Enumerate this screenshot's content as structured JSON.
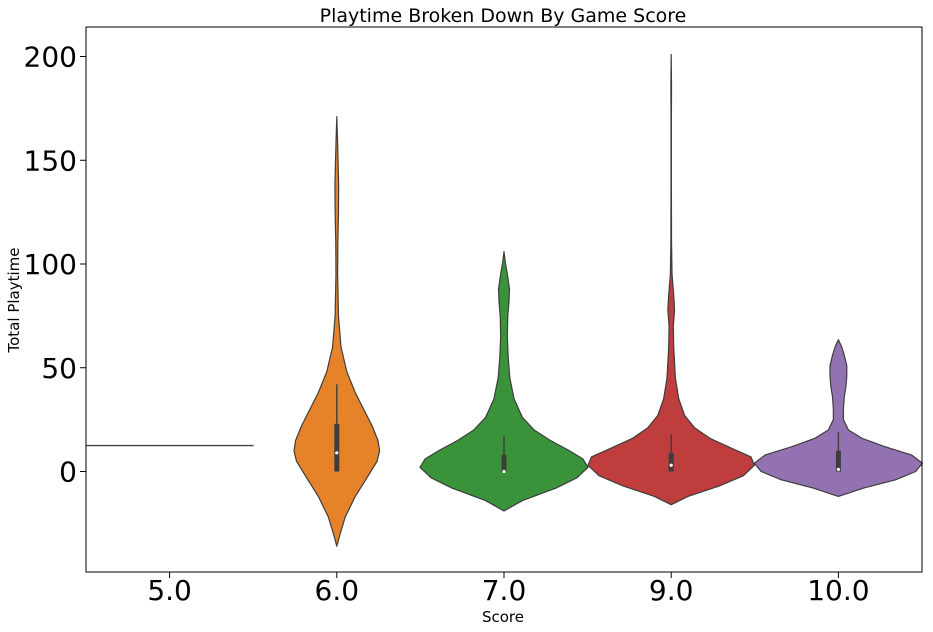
{
  "chart_data": {
    "type": "violin",
    "title": "Playtime Broken Down By Game Score",
    "xlabel": "Score",
    "ylabel": "Total Playtime",
    "categories": [
      "5.0",
      "6.0",
      "7.0",
      "9.0",
      "10.0"
    ],
    "yticks": [
      0,
      50,
      100,
      150,
      200
    ],
    "ylim": [
      -48,
      213
    ],
    "grid": false,
    "violins": [
      {
        "category": "5.0",
        "color": "#1f77b4",
        "degenerate": true,
        "value": 12.5,
        "profile": []
      },
      {
        "category": "6.0",
        "color": "#e6822a",
        "degenerate": false,
        "profile": [
          [
            -36,
            0.0
          ],
          [
            -30,
            0.04
          ],
          [
            -22,
            0.1
          ],
          [
            -12,
            0.22
          ],
          [
            -3,
            0.36
          ],
          [
            5,
            0.48
          ],
          [
            10,
            0.51
          ],
          [
            15,
            0.49
          ],
          [
            22,
            0.42
          ],
          [
            30,
            0.32
          ],
          [
            38,
            0.22
          ],
          [
            48,
            0.12
          ],
          [
            60,
            0.05
          ],
          [
            75,
            0.02
          ],
          [
            95,
            0.01
          ],
          [
            110,
            0.012
          ],
          [
            125,
            0.02
          ],
          [
            138,
            0.022
          ],
          [
            150,
            0.015
          ],
          [
            162,
            0.007
          ],
          [
            171,
            0.0
          ]
        ],
        "box": {
          "q1": 0,
          "median": 9,
          "q3": 23,
          "whisker_low": 0,
          "whisker_high": 42
        }
      },
      {
        "category": "7.0",
        "color": "#3a923a",
        "degenerate": false,
        "profile": [
          [
            -19,
            0.0
          ],
          [
            -14,
            0.22
          ],
          [
            -8,
            0.62
          ],
          [
            -3,
            0.87
          ],
          [
            2,
            1.0
          ],
          [
            6,
            0.94
          ],
          [
            10,
            0.78
          ],
          [
            15,
            0.55
          ],
          [
            20,
            0.36
          ],
          [
            26,
            0.22
          ],
          [
            35,
            0.12
          ],
          [
            45,
            0.07
          ],
          [
            55,
            0.05
          ],
          [
            65,
            0.04
          ],
          [
            75,
            0.045
          ],
          [
            82,
            0.06
          ],
          [
            88,
            0.065
          ],
          [
            95,
            0.04
          ],
          [
            101,
            0.015
          ],
          [
            106,
            0.0
          ]
        ],
        "box": {
          "q1": 0,
          "median": 0,
          "q3": 8,
          "whisker_low": 0,
          "whisker_high": 17
        }
      },
      {
        "category": "9.0",
        "color": "#c03d3e",
        "degenerate": false,
        "profile": [
          [
            -16,
            0.0
          ],
          [
            -12,
            0.2
          ],
          [
            -7,
            0.57
          ],
          [
            -2,
            0.86
          ],
          [
            3,
            0.99
          ],
          [
            7,
            0.95
          ],
          [
            11,
            0.73
          ],
          [
            16,
            0.46
          ],
          [
            21,
            0.28
          ],
          [
            27,
            0.16
          ],
          [
            35,
            0.09
          ],
          [
            45,
            0.05
          ],
          [
            60,
            0.03
          ],
          [
            70,
            0.025
          ],
          [
            78,
            0.04
          ],
          [
            85,
            0.03
          ],
          [
            95,
            0.01
          ],
          [
            110,
            0.004
          ],
          [
            140,
            0.002
          ],
          [
            170,
            0.002
          ],
          [
            185,
            0.004
          ],
          [
            193,
            0.002
          ],
          [
            201,
            0.0
          ]
        ],
        "box": {
          "q1": 0,
          "median": 3,
          "q3": 9,
          "whisker_low": 0,
          "whisker_high": 18
        }
      },
      {
        "category": "10.0",
        "color": "#9372b2",
        "degenerate": false,
        "profile": [
          [
            -12,
            0.0
          ],
          [
            -8,
            0.3
          ],
          [
            -4,
            0.68
          ],
          [
            0,
            0.92
          ],
          [
            4,
            1.0
          ],
          [
            8,
            0.87
          ],
          [
            12,
            0.55
          ],
          [
            16,
            0.28
          ],
          [
            20,
            0.12
          ],
          [
            25,
            0.06
          ],
          [
            30,
            0.06
          ],
          [
            36,
            0.07
          ],
          [
            41,
            0.09
          ],
          [
            46,
            0.1
          ],
          [
            51,
            0.1
          ],
          [
            56,
            0.07
          ],
          [
            60,
            0.04
          ],
          [
            63.5,
            0.0
          ]
        ],
        "box": {
          "q1": 0,
          "median": 1,
          "q3": 10,
          "whisker_low": 0,
          "whisker_high": 19
        }
      }
    ]
  }
}
